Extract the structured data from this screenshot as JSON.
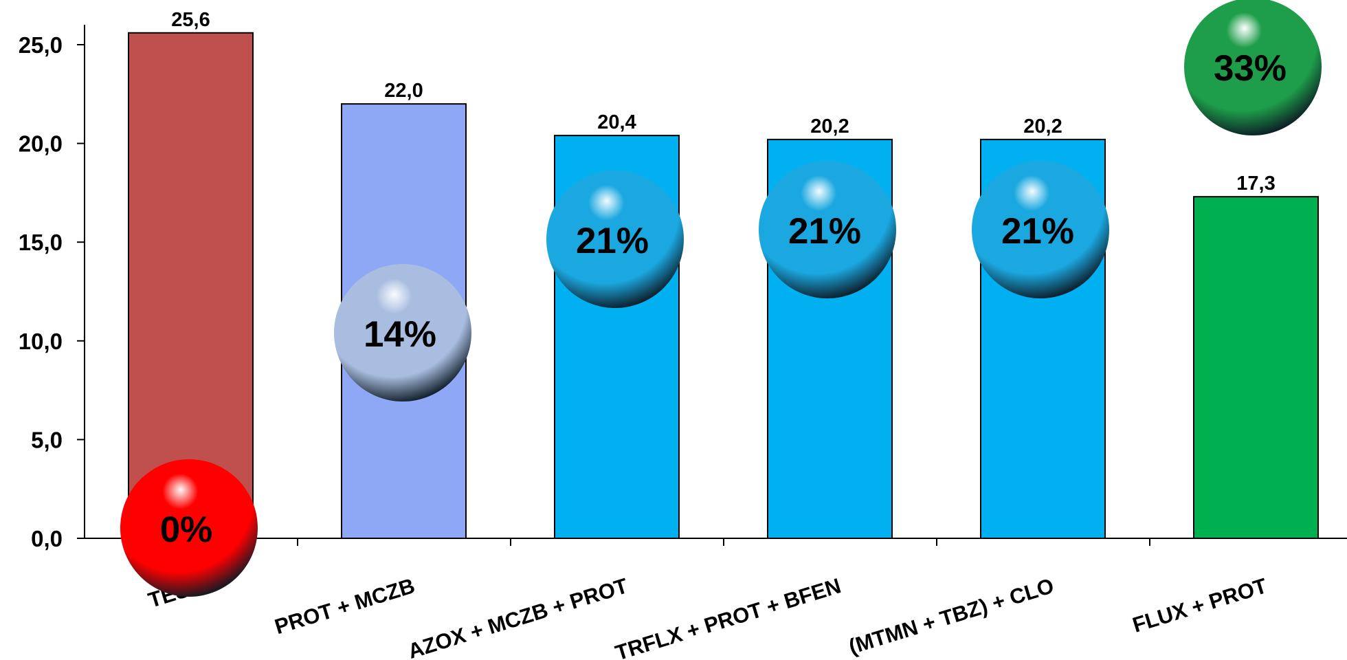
{
  "chart_data": {
    "type": "bar",
    "categories": [
      "TEST",
      "PROT + MCZB",
      "AZOX + MCZB + PROT",
      "TRFLX + PROT + BFEN",
      "(MTMN + TBZ) + CLO",
      "FLUX + PROT"
    ],
    "values": [
      25.6,
      22.0,
      20.4,
      20.2,
      20.2,
      17.3
    ],
    "value_labels": [
      "25,6",
      "22,0",
      "20,4",
      "20,2",
      "20,2",
      "17,3"
    ],
    "reduction_labels": [
      "0%",
      "14%",
      "21%",
      "21%",
      "21%",
      "33%"
    ],
    "bar_colors": [
      "#C0504D",
      "#8EA8F5",
      "#00B0F0",
      "#00B0F0",
      "#00B0F0",
      "#00B050"
    ],
    "sphere_colors": [
      "#FF0000",
      "#A9BDE0",
      "#1BA8E0",
      "#1BA8E0",
      "#1BA8E0",
      "#1E9E4A"
    ],
    "yticks": [
      "0,0",
      "5,0",
      "10,0",
      "15,0",
      "20,0",
      "25,0"
    ],
    "ytick_values": [
      0,
      5,
      10,
      15,
      20,
      25
    ],
    "ylim": [
      0,
      27.2
    ],
    "title": "",
    "xlabel": "",
    "ylabel": "",
    "grid": false,
    "legend": "none"
  }
}
